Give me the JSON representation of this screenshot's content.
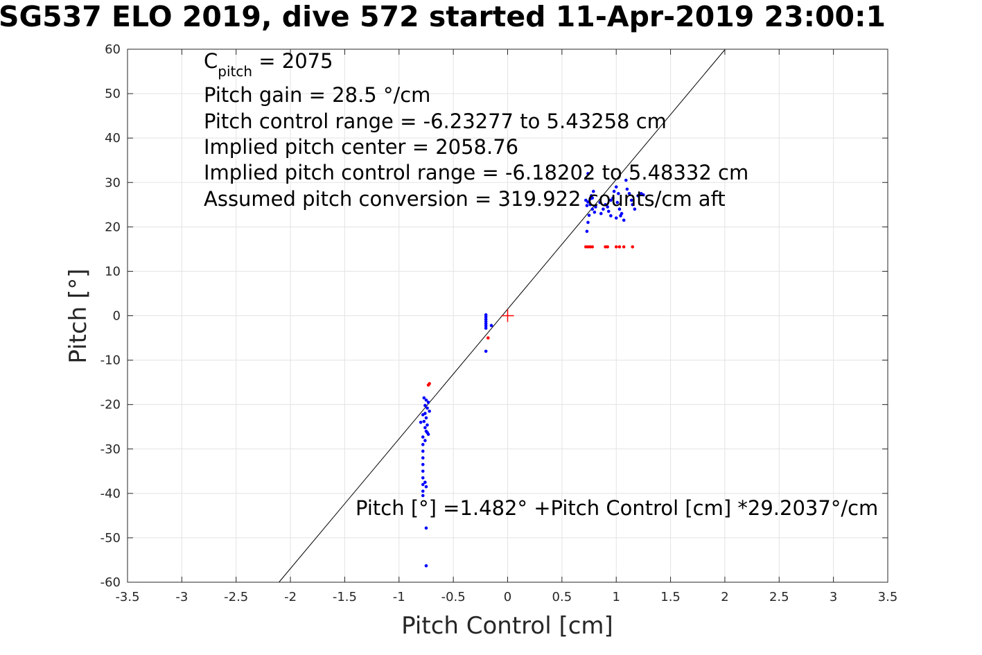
{
  "chart_data": {
    "type": "scatter",
    "title": "SG537 ELO 2019, dive 572 started 11-Apr-2019 23:00:1",
    "xlabel": "Pitch Control [cm]",
    "ylabel": "Pitch [°]",
    "xlim": [
      -3.5,
      3.5
    ],
    "ylim": [
      -60,
      60
    ],
    "xticks": [
      -3.5,
      -3,
      -2.5,
      -2,
      -1.5,
      -1,
      -0.5,
      0,
      0.5,
      1,
      1.5,
      2,
      2.5,
      3,
      3.5
    ],
    "xtick_labels": [
      "-3.5",
      "-3",
      "-2.5",
      "-2",
      "-1.5",
      "-1",
      "-0.5",
      "0",
      "0.5",
      "1",
      "1.5",
      "2",
      "2.5",
      "3",
      "3.5"
    ],
    "yticks": [
      -60,
      -50,
      -40,
      -30,
      -20,
      -10,
      0,
      10,
      20,
      30,
      40,
      50,
      60
    ],
    "ytick_labels": [
      "-60",
      "-50",
      "-40",
      "-30",
      "-20",
      "-10",
      "0",
      "10",
      "20",
      "30",
      "40",
      "50",
      "60"
    ],
    "grid": true,
    "series": [
      {
        "color": "#0000ff",
        "points": [
          [
            -0.2,
            0.2
          ],
          [
            -0.2,
            -0.3
          ],
          [
            -0.2,
            -0.8
          ],
          [
            -0.2,
            -1.3
          ],
          [
            -0.2,
            -1.8
          ],
          [
            -0.2,
            -2.3
          ],
          [
            -0.2,
            -2.8
          ],
          [
            -0.15,
            -2.2
          ],
          [
            -0.2,
            -8.0
          ],
          [
            -0.77,
            -18.5
          ],
          [
            -0.75,
            -19.0
          ],
          [
            -0.73,
            -19.5
          ],
          [
            -0.76,
            -20.2
          ],
          [
            -0.74,
            -20.8
          ],
          [
            -0.72,
            -21.5
          ],
          [
            -0.78,
            -22.3
          ],
          [
            -0.75,
            -23.0
          ],
          [
            -0.77,
            -23.8
          ],
          [
            -0.8,
            -24.0
          ],
          [
            -0.74,
            -24.6
          ],
          [
            -0.76,
            -25.2
          ],
          [
            -0.75,
            -26.0
          ],
          [
            -0.73,
            -26.7
          ],
          [
            -0.78,
            -27.3
          ],
          [
            -0.76,
            -28.1
          ],
          [
            -0.74,
            -26.3
          ],
          [
            -0.76,
            -22.0
          ],
          [
            -0.78,
            -29.0
          ],
          [
            -0.78,
            -30.5
          ],
          [
            -0.78,
            -32.0
          ],
          [
            -0.78,
            -33.5
          ],
          [
            -0.78,
            -35.0
          ],
          [
            -0.78,
            -36.5
          ],
          [
            -0.78,
            -38.0
          ],
          [
            -0.78,
            -39.5
          ],
          [
            -0.78,
            -40.5
          ],
          [
            -0.76,
            -37.5
          ],
          [
            -0.75,
            -38.5
          ],
          [
            -0.75,
            -47.8
          ],
          [
            -0.75,
            -56.3
          ],
          [
            0.73,
            24.8
          ],
          [
            0.74,
            25.6
          ],
          [
            0.76,
            26.3
          ],
          [
            0.78,
            24.0
          ],
          [
            0.8,
            23.3
          ],
          [
            0.75,
            22.6
          ],
          [
            0.77,
            27.0
          ],
          [
            0.79,
            28.0
          ],
          [
            0.72,
            26.0
          ],
          [
            0.74,
            21.0
          ],
          [
            0.73,
            19.0
          ],
          [
            0.76,
            25.0
          ],
          [
            0.78,
            26.5
          ],
          [
            0.81,
            24.5
          ],
          [
            0.85,
            25.5
          ],
          [
            0.88,
            24.0
          ],
          [
            0.9,
            25.0
          ],
          [
            0.93,
            23.5
          ],
          [
            0.95,
            26.0
          ],
          [
            0.98,
            28.0
          ],
          [
            1.0,
            29.0
          ],
          [
            1.02,
            27.5
          ],
          [
            1.03,
            24.0
          ],
          [
            1.0,
            22.0
          ],
          [
            1.04,
            22.5
          ],
          [
            1.05,
            23.0
          ],
          [
            1.07,
            21.5
          ],
          [
            1.09,
            30.5
          ],
          [
            1.1,
            28.5
          ],
          [
            1.12,
            27.5
          ],
          [
            1.14,
            26.0
          ],
          [
            1.15,
            25.0
          ],
          [
            1.17,
            24.0
          ],
          [
            1.2,
            27.0
          ],
          [
            1.23,
            27.5
          ],
          [
            1.25,
            27.2
          ],
          [
            0.92,
            24.5
          ],
          [
            0.97,
            26.5
          ],
          [
            1.01,
            25.5
          ],
          [
            0.86,
            23.0
          ],
          [
            0.95,
            22.5
          ],
          [
            0.74,
            32.0
          ]
        ]
      },
      {
        "color": "#ff0000",
        "points": [
          [
            -0.73,
            -15.6
          ],
          [
            -0.72,
            -15.3
          ],
          [
            -0.18,
            -5.0
          ],
          [
            0.72,
            15.5
          ],
          [
            0.74,
            15.5
          ],
          [
            0.76,
            15.5
          ],
          [
            0.78,
            15.5
          ],
          [
            0.9,
            15.5
          ],
          [
            0.92,
            15.5
          ],
          [
            1.0,
            15.5
          ],
          [
            1.03,
            15.5
          ],
          [
            1.07,
            15.5
          ],
          [
            1.15,
            15.5
          ]
        ]
      }
    ],
    "center_marker": {
      "x": 0,
      "y": 0,
      "color": "#ff0000"
    },
    "fit_line": {
      "intercept": 1.482,
      "slope": 29.2037,
      "color": "#000000"
    },
    "annotations": {
      "cpitch_symbol": "C",
      "cpitch_subscript": "pitch",
      "cpitch_value": " = 2075",
      "pitch_gain": "Pitch gain = 28.5 °/cm",
      "control_range": "Pitch control range = -6.23277 to 5.43258 cm",
      "implied_center": "Implied pitch center = 2058.76",
      "implied_range": "Implied pitch control range = -6.18202 to 5.48332 cm",
      "conversion": "Assumed pitch conversion = 319.922 counts/cm aft",
      "fit_equation": "Pitch [°] =1.482° +Pitch Control [cm] *29.2037°/cm"
    }
  }
}
